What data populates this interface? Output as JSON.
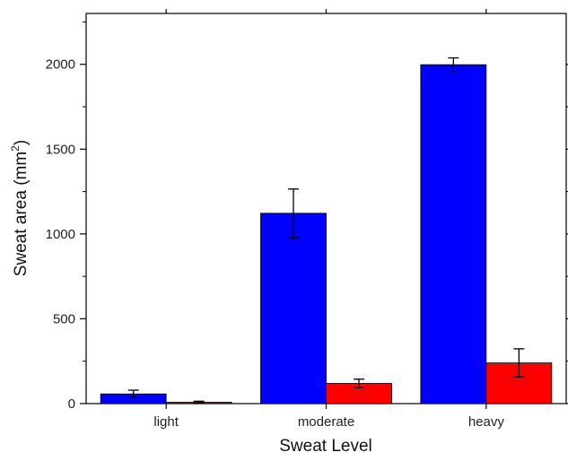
{
  "chart_data": {
    "type": "bar",
    "xlabel": "Sweat Level",
    "ylabel": {
      "text": "Sweat area (mm",
      "superscript": "2",
      "suffix": ")"
    },
    "categories": [
      "light",
      "moderate",
      "heavy"
    ],
    "series": [
      {
        "color": "#0000ff",
        "values": [
          57,
          1122,
          1998
        ],
        "errors": [
          22,
          143,
          40
        ]
      },
      {
        "color": "#ff0000",
        "values": [
          8,
          119,
          240
        ],
        "errors": [
          6,
          25,
          83
        ]
      }
    ],
    "ylim": [
      0,
      2300
    ],
    "yticks": [
      0,
      500,
      1000,
      1500,
      2000
    ],
    "grid": false
  }
}
